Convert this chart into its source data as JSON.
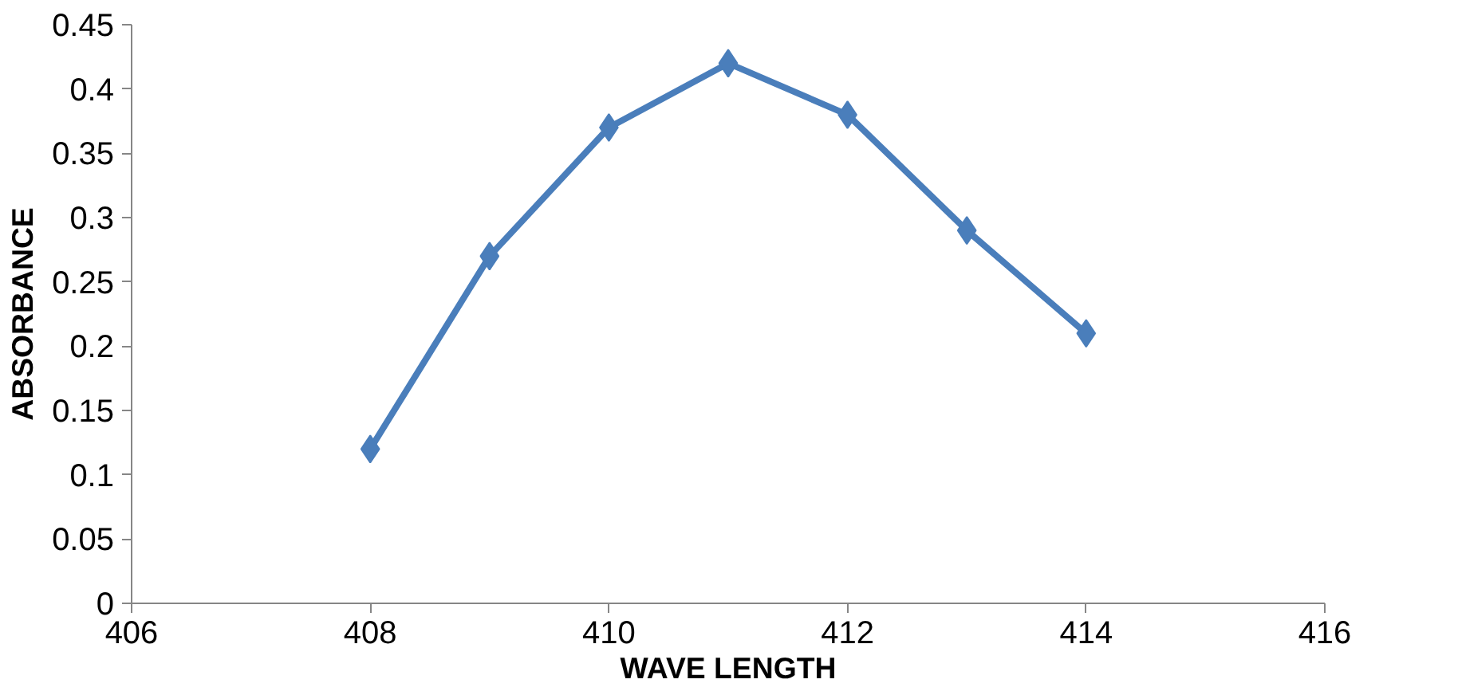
{
  "chart_data": {
    "type": "line",
    "xlabel": "WAVE LENGTH",
    "ylabel": "ABSORBANCE",
    "x": [
      408,
      409,
      410,
      411,
      412,
      413,
      414
    ],
    "series": [
      {
        "color": "#4a7ebb",
        "values": [
          0.12,
          0.27,
          0.37,
          0.42,
          0.38,
          0.29,
          0.21
        ]
      }
    ],
    "xlim": [
      406,
      416
    ],
    "xticks": [
      406,
      408,
      410,
      412,
      414,
      416
    ],
    "ylim": [
      0,
      0.45
    ],
    "yticks": [
      0,
      0.05,
      0.1,
      0.15,
      0.2,
      0.25,
      0.3,
      0.35,
      0.4,
      0.45
    ],
    "grid": false,
    "marker": "diamond",
    "line_style": "solid"
  }
}
